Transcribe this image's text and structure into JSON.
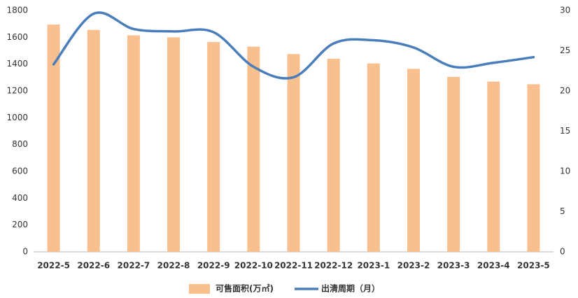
{
  "chart_data": {
    "type": "bar-line",
    "categories": [
      "2022-5",
      "2022-6",
      "2022-7",
      "2022-8",
      "2022-9",
      "2022-10",
      "2022-11",
      "2022-12",
      "2023-1",
      "2023-2",
      "2023-3",
      "2023-4",
      "2023-5"
    ],
    "series": [
      {
        "name": "可售面积(万㎡)",
        "type": "bar",
        "color": "#f9c08f",
        "values": [
          1695,
          1655,
          1615,
          1600,
          1565,
          1530,
          1475,
          1440,
          1405,
          1365,
          1305,
          1270,
          1250
        ]
      },
      {
        "name": "出清周期（月）",
        "type": "line",
        "axis": "y2",
        "color": "#4a7ebb",
        "values": [
          23.3,
          29.6,
          27.7,
          27.4,
          27.3,
          23.0,
          21.7,
          25.9,
          26.3,
          25.4,
          23.0,
          23.5,
          24.2
        ]
      }
    ],
    "ylim": [
      0,
      1800
    ],
    "yticks": [
      0,
      200,
      400,
      600,
      800,
      1000,
      1200,
      1400,
      1600,
      1800
    ],
    "y2lim": [
      0,
      30
    ],
    "y2ticks": [
      0,
      5,
      10,
      15,
      20,
      25,
      30
    ]
  }
}
